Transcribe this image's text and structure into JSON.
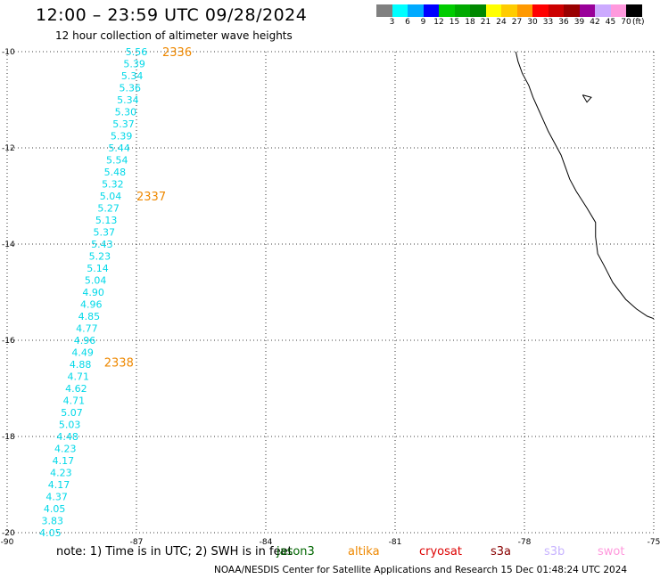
{
  "header": {
    "title": "12:00 – 23:59 UTC 09/28/2024",
    "subtitle": "12 hour collection of altimeter wave heights"
  },
  "legend": {
    "unit": "(ft)",
    "colors": [
      "#808080",
      "#00ffff",
      "#00aaff",
      "#0000ff",
      "#00cc00",
      "#00aa00",
      "#008800",
      "#ffff00",
      "#ffcc00",
      "#ff9900",
      "#ff0000",
      "#cc0000",
      "#990000",
      "#990099",
      "#ccaaff",
      "#ff99dd",
      "#000000"
    ],
    "labels": [
      "3",
      "6",
      "9",
      "12",
      "15",
      "18",
      "21",
      "24",
      "27",
      "30",
      "33",
      "36",
      "39",
      "42",
      "45",
      "70"
    ]
  },
  "chart_data": {
    "type": "scatter",
    "xlim": [
      -90,
      -75
    ],
    "ylim": [
      -20,
      -10
    ],
    "x_ticks": [
      "-90",
      "-87",
      "-84",
      "-81",
      "-78",
      "-75"
    ],
    "y_ticks": [
      "-10",
      "-12",
      "-14",
      "-16",
      "-18",
      "-20"
    ],
    "grid": true,
    "series": [
      {
        "color": "#00d8e8",
        "points": [
          {
            "lon": -87.0,
            "lat": -10.0,
            "label": "5.56"
          },
          {
            "lon": -87.05,
            "lat": -10.25,
            "label": "5.39"
          },
          {
            "lon": -87.1,
            "lat": -10.5,
            "label": "5.34"
          },
          {
            "lon": -87.15,
            "lat": -10.75,
            "label": "5.36"
          },
          {
            "lon": -87.2,
            "lat": -11.0,
            "label": "5.34"
          },
          {
            "lon": -87.25,
            "lat": -11.25,
            "label": "5.30"
          },
          {
            "lon": -87.3,
            "lat": -11.5,
            "label": "5.37"
          },
          {
            "lon": -87.35,
            "lat": -11.75,
            "label": "5.39"
          },
          {
            "lon": -87.4,
            "lat": -12.0,
            "label": "5.44"
          },
          {
            "lon": -87.45,
            "lat": -12.25,
            "label": "5.54"
          },
          {
            "lon": -87.5,
            "lat": -12.5,
            "label": "5.48"
          },
          {
            "lon": -87.55,
            "lat": -12.75,
            "label": "5.32"
          },
          {
            "lon": -87.6,
            "lat": -13.0,
            "label": "5.04"
          },
          {
            "lon": -87.65,
            "lat": -13.25,
            "label": "5.27"
          },
          {
            "lon": -87.7,
            "lat": -13.5,
            "label": "5.13"
          },
          {
            "lon": -87.75,
            "lat": -13.75,
            "label": "5.37"
          },
          {
            "lon": -87.8,
            "lat": -14.0,
            "label": "5.43"
          },
          {
            "lon": -87.85,
            "lat": -14.25,
            "label": "5.23"
          },
          {
            "lon": -87.9,
            "lat": -14.5,
            "label": "5.14"
          },
          {
            "lon": -87.95,
            "lat": -14.75,
            "label": "5.04"
          },
          {
            "lon": -88.0,
            "lat": -15.0,
            "label": "4.90"
          },
          {
            "lon": -88.05,
            "lat": -15.25,
            "label": "4.96"
          },
          {
            "lon": -88.1,
            "lat": -15.5,
            "label": "4.85"
          },
          {
            "lon": -88.15,
            "lat": -15.75,
            "label": "4.77"
          },
          {
            "lon": -88.2,
            "lat": -16.0,
            "label": "4.96"
          },
          {
            "lon": -88.25,
            "lat": -16.25,
            "label": "4.49"
          },
          {
            "lon": -88.3,
            "lat": -16.5,
            "label": "4.88"
          },
          {
            "lon": -88.35,
            "lat": -16.75,
            "label": "4.71"
          },
          {
            "lon": -88.4,
            "lat": -17.0,
            "label": "4.62"
          },
          {
            "lon": -88.45,
            "lat": -17.25,
            "label": "4.71"
          },
          {
            "lon": -88.5,
            "lat": -17.5,
            "label": "5.07"
          },
          {
            "lon": -88.55,
            "lat": -17.75,
            "label": "5.03"
          },
          {
            "lon": -88.6,
            "lat": -18.0,
            "label": "4.48"
          },
          {
            "lon": -88.65,
            "lat": -18.25,
            "label": "4.23"
          },
          {
            "lon": -88.7,
            "lat": -18.5,
            "label": "4.17"
          },
          {
            "lon": -88.75,
            "lat": -18.75,
            "label": "4.23"
          },
          {
            "lon": -88.8,
            "lat": -19.0,
            "label": "4.17"
          },
          {
            "lon": -88.85,
            "lat": -19.25,
            "label": "4.37"
          },
          {
            "lon": -88.9,
            "lat": -19.5,
            "label": "4.05"
          },
          {
            "lon": -88.95,
            "lat": -19.75,
            "label": "3.83"
          },
          {
            "lon": -89.0,
            "lat": -20.0,
            "label": "4.05"
          }
        ]
      }
    ],
    "annotations": [
      {
        "text": "2336",
        "lon": -86.4,
        "lat": -10.0,
        "color": "#ee8800"
      },
      {
        "text": "2337",
        "lon": -87.0,
        "lat": -13.0,
        "color": "#ee8800"
      },
      {
        "text": "2338",
        "lon": -87.75,
        "lat": -16.45,
        "color": "#ee8800"
      }
    ],
    "coastline": [
      [
        -78.2,
        -10.0
      ],
      [
        -78.15,
        -10.2
      ],
      [
        -78.05,
        -10.45
      ],
      [
        -77.9,
        -10.7
      ],
      [
        -77.8,
        -10.95
      ],
      [
        -77.65,
        -11.25
      ],
      [
        -77.55,
        -11.45
      ],
      [
        -77.45,
        -11.65
      ],
      [
        -77.3,
        -11.9
      ],
      [
        -77.15,
        -12.15
      ],
      [
        -77.05,
        -12.4
      ],
      [
        -76.95,
        -12.65
      ],
      [
        -76.8,
        -12.9
      ],
      [
        -76.55,
        -13.25
      ],
      [
        -76.35,
        -13.55
      ],
      [
        -76.35,
        -13.85
      ],
      [
        -76.3,
        -14.2
      ],
      [
        -76.15,
        -14.45
      ],
      [
        -75.95,
        -14.8
      ],
      [
        -75.65,
        -15.15
      ],
      [
        -75.4,
        -15.35
      ],
      [
        -75.15,
        -15.5
      ],
      [
        -75.0,
        -15.55
      ]
    ],
    "island": [
      [
        -76.65,
        -10.9
      ],
      [
        -76.45,
        -10.95
      ],
      [
        -76.55,
        -11.05
      ],
      [
        -76.65,
        -10.9
      ]
    ]
  },
  "footer": {
    "note": "note:  1) Time is in UTC; 2) SWH is in feet",
    "satellites": [
      {
        "name": "jason3",
        "color": "#006600"
      },
      {
        "name": "altika",
        "color": "#ee8800"
      },
      {
        "name": "cryosat",
        "color": "#dd0000"
      },
      {
        "name": "s3a",
        "color": "#880000"
      },
      {
        "name": "s3b",
        "color": "#c8b4ff"
      },
      {
        "name": "swot",
        "color": "#ff99dd"
      }
    ],
    "credit": "NOAA/NESDIS Center for Satellite Applications and Research    15 Dec 01:48:24 UTC 2024"
  }
}
